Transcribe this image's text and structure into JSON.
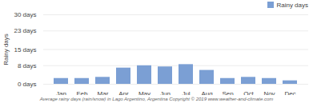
{
  "chart_data": {
    "type": "bar",
    "categories": [
      "Jan",
      "Feb",
      "Mar",
      "Apr",
      "May",
      "Jun",
      "Jul",
      "Aug",
      "Sep",
      "Oct",
      "Nov",
      "Dec"
    ],
    "series": [
      {
        "name": "Rainy days",
        "color": "#7b9fd4",
        "values": [
          2.5,
          2.5,
          3.0,
          7.0,
          8.0,
          7.5,
          8.5,
          6.0,
          2.5,
          3.0,
          2.5,
          1.5
        ]
      }
    ],
    "ylabel": "Rainy days",
    "xlabel": "Average rainy days (rain/snow) in Lago Argentino, Argentina   Copyright © 2019 www.weather-and-climate.com",
    "ylim": [
      0,
      30
    ],
    "yticks": [
      {
        "value": 0,
        "label": "0 days"
      },
      {
        "value": 8,
        "label": "8 days"
      },
      {
        "value": 15,
        "label": "15 days"
      },
      {
        "value": 23,
        "label": "23 days"
      },
      {
        "value": 30,
        "label": "30 days"
      }
    ],
    "grid": true,
    "legend": "upper right"
  }
}
